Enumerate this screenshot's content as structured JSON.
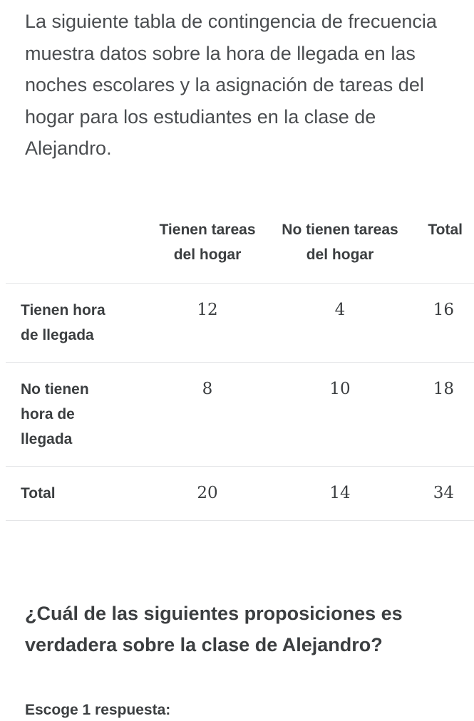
{
  "intro": "La siguiente tabla de contingencia de frecuencia muestra datos sobre la hora de llegada en las noches escolares y la asignación de tareas del hogar para los estudiantes en la clase de Alejandro.",
  "table": {
    "headers": [
      "",
      "Tienen tareas del hogar",
      "No tienen tareas del hogar",
      "Total"
    ],
    "rows": [
      {
        "label": "Tienen hora de llegada",
        "values": [
          "12",
          "4",
          "16"
        ]
      },
      {
        "label": "No tienen hora de llegada",
        "values": [
          "8",
          "10",
          "18"
        ]
      },
      {
        "label": "Total",
        "values": [
          "20",
          "14",
          "34"
        ]
      }
    ]
  },
  "question": "¿Cuál de las siguientes proposiciones es verdadera sobre la clase de Alejandro?",
  "choose_label": "Escoge 1 respuesta:"
}
